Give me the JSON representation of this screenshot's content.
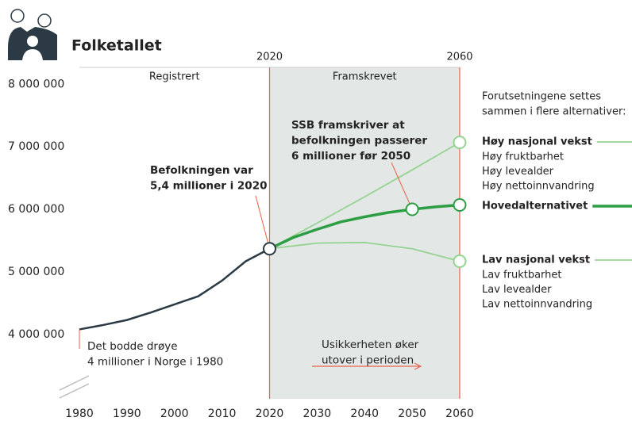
{
  "chart_data": {
    "type": "line",
    "title": "Folketallet",
    "xlim": [
      1980,
      2060
    ],
    "xticks": [
      1980,
      1990,
      2000,
      2010,
      2020,
      2030,
      2040,
      2050,
      2060
    ],
    "ylim": [
      2970000,
      8270000
    ],
    "yticks": [
      {
        "value": 4000000,
        "label": "4 000 000"
      },
      {
        "value": 5000000,
        "label": "5 000 000"
      },
      {
        "value": 6000000,
        "label": "6 000 000"
      },
      {
        "value": 7000000,
        "label": "7 000 000"
      },
      {
        "value": 8000000,
        "label": "8 000 000"
      }
    ],
    "boundaries": [
      2020,
      2060
    ],
    "regions": [
      "Registrert",
      "Framskrevet"
    ],
    "series": [
      {
        "color": "#2b3a44",
        "x": [
          1980,
          1985,
          1990,
          1995,
          2000,
          2005,
          2010,
          2015,
          2020
        ],
        "values": [
          4080000,
          4150000,
          4230000,
          4350000,
          4480000,
          4610000,
          4860000,
          5170000,
          5370000
        ]
      },
      {
        "name": "Høy nasjonal vekst",
        "color": "#95d391",
        "x": [
          2020,
          2030,
          2040,
          2050,
          2060
        ],
        "values": [
          5370000,
          5780000,
          6200000,
          6630000,
          7070000
        ],
        "assumptions": [
          "Høy fruktbarhet",
          "Høy levealder",
          "Høy nettoinnvandring"
        ]
      },
      {
        "name": "Hovedalternativet",
        "color": "#2e9e44",
        "x": [
          2020,
          2025,
          2030,
          2035,
          2040,
          2045,
          2050,
          2055,
          2060
        ],
        "values": [
          5370000,
          5550000,
          5680000,
          5800000,
          5880000,
          5950000,
          6000000,
          6040000,
          6070000
        ]
      },
      {
        "name": "Lav nasjonal vekst",
        "color": "#95d391",
        "x": [
          2020,
          2030,
          2040,
          2050,
          2060
        ],
        "values": [
          5370000,
          5460000,
          5470000,
          5370000,
          5170000
        ],
        "assumptions": [
          "Lav fruktbarhet",
          "Lav levealder",
          "Lav nettoinnvandring"
        ]
      }
    ],
    "legend_intro": [
      "Forutsetningene settes",
      "sammen i flere alternativer:"
    ],
    "annotations": [
      {
        "lines": [
          "Befolkningen var",
          "5,4 millioner i 2020"
        ],
        "bold": true
      },
      {
        "lines": [
          "SSB framskriver at",
          "befolkningen passerer",
          "6 millioner før 2050"
        ],
        "bold": true
      },
      {
        "lines": [
          "Det bodde drøye",
          "4 millioner i Norge i 1980"
        ],
        "bold": false
      },
      {
        "lines": [
          "Usikkerheten øker",
          "utover i perioden"
        ],
        "bold": false
      }
    ]
  }
}
